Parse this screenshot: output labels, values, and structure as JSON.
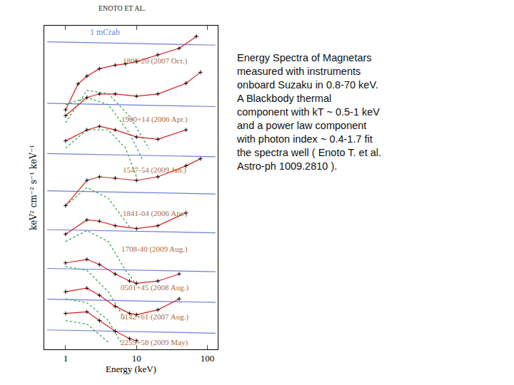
{
  "chart_data": {
    "type": "line",
    "header": "ENOTO ET AL.",
    "caption": [
      "Energy Spectra of Magnetars",
      "measured with instruments",
      "onboard Suzaku in 0.8-70 keV.",
      "A Blackbody thermal",
      "component with kT ~ 0.5-1 keV",
      "and a power law component",
      "with photon index ~ 0.4-1.7 fit",
      "the spectra well ( Enoto T. et al.",
      "Astro-ph 1009.2810 )."
    ],
    "x_label": "Energy (keV)",
    "y_label": "keV² cm⁻² s⁻¹ keV⁻¹",
    "reference_label": {
      "text": "1 mCrab",
      "x": 3.6,
      "y": 98
    },
    "log": "x",
    "xlim": [
      0.5,
      140
    ],
    "xticks": [
      1,
      10,
      100
    ],
    "ylim": [
      0,
      100
    ],
    "tick_labels": "x",
    "grid": false,
    "crab_x": [
      0.55,
      130
    ],
    "series": [
      {
        "name": "1806-20 (2007 Oct.)",
        "color": "#000000",
        "label_x": 18,
        "label_y": 89,
        "x": [
          1,
          1.5,
          2,
          3,
          5,
          7,
          10,
          20,
          40,
          70
        ],
        "values": [
          74,
          82,
          84.4,
          86.7,
          87.8,
          88.2,
          88.9,
          91,
          93,
          96.7
        ],
        "blackbody_x": [
          1,
          2,
          4,
          8,
          15
        ],
        "blackbody": [
          70,
          80,
          79,
          72,
          62
        ],
        "crab": [
          95,
          94
        ]
      },
      {
        "name": "1900+14 (2006 Apr.)",
        "color": "#000000",
        "label_x": 18,
        "label_y": 71,
        "x": [
          1,
          2,
          3,
          5,
          10,
          20,
          50,
          80
        ],
        "values": [
          72.2,
          77.8,
          78.9,
          78.9,
          78.2,
          78.9,
          82.2,
          85.6
        ],
        "blackbody_x": [
          1,
          2,
          4,
          8,
          12
        ],
        "blackbody": [
          75.6,
          77.8,
          75.6,
          66.7,
          58.9
        ],
        "crab": [
          76,
          75
        ]
      },
      {
        "name": "1547-54 (2009 Jan.)",
        "color": "#000000",
        "label_x": 18,
        "label_y": 55.5,
        "x": [
          1,
          2,
          3,
          5,
          10,
          20,
          50
        ],
        "values": [
          64.4,
          67.8,
          68.9,
          67.8,
          65.6,
          64.9,
          67.8
        ],
        "blackbody_x": [
          1,
          2,
          4,
          7,
          10
        ],
        "blackbody": [
          62.2,
          67.8,
          67.8,
          62.2,
          53.3
        ],
        "crab": [
          60.5,
          59.5
        ]
      },
      {
        "name": "1841-04 (2006 Apr.)",
        "color": "#000000",
        "label_x": 18,
        "label_y": 42,
        "x": [
          1,
          2,
          3,
          5,
          10,
          20,
          50,
          80
        ],
        "values": [
          44.4,
          52.2,
          53.3,
          52.9,
          52.2,
          53.3,
          56.7,
          58.9
        ],
        "blackbody_x": [
          1,
          2,
          4,
          8
        ],
        "blackbody": [
          44.4,
          50,
          46.7,
          37.8
        ],
        "crab": [
          49,
          48
        ]
      },
      {
        "name": "1708-40 (2009 Aug.)",
        "color": "#000000",
        "label_x": 18,
        "label_y": 31,
        "x": [
          1,
          2,
          3,
          5,
          10,
          20,
          50
        ],
        "values": [
          35.6,
          40,
          39.6,
          38.2,
          37.3,
          38.2,
          42.2
        ],
        "blackbody_x": [
          1,
          2,
          4,
          7,
          10
        ],
        "blackbody": [
          33.3,
          36.7,
          33.3,
          24.4,
          20
        ],
        "crab": [
          37,
          36
        ]
      },
      {
        "name": "0501+45 (2008 Aug.)",
        "color": "#000000",
        "label_x": 18,
        "label_y": 19,
        "x": [
          1,
          2,
          3,
          5,
          8,
          10,
          20,
          40
        ],
        "values": [
          26.7,
          27.8,
          26.2,
          23.3,
          21.1,
          20.4,
          21.1,
          23.3
        ],
        "blackbody_x": [
          1,
          2,
          4,
          7
        ],
        "blackbody": [
          25.6,
          24.4,
          17.8,
          8.9
        ],
        "crab": [
          25,
          24
        ]
      },
      {
        "name": "0142+61 (2007 Aug.)",
        "color": "#000000",
        "label_x": 18,
        "label_y": 10,
        "x": [
          1,
          2,
          3,
          5,
          8,
          10,
          20,
          40
        ],
        "values": [
          17.8,
          18.9,
          16.7,
          13.3,
          11.1,
          10.7,
          12.2,
          15.6
        ],
        "blackbody_x": [
          1,
          2,
          4,
          6
        ],
        "blackbody": [
          15.6,
          14.4,
          8.9,
          2.2
        ],
        "crab": [
          15.5,
          14.5
        ]
      },
      {
        "name": "2259+58 (2009 May)",
        "color": "#000000",
        "label_x": 18,
        "label_y": 2,
        "x": [
          1,
          2,
          3,
          5,
          8,
          10
        ],
        "values": [
          11.1,
          11.6,
          8.9,
          5.6,
          3.3,
          2.7
        ],
        "blackbody_x": [
          1,
          2,
          4
        ],
        "blackbody": [
          8.9,
          7.8,
          2.2
        ],
        "crab": [
          6,
          5
        ]
      }
    ]
  }
}
